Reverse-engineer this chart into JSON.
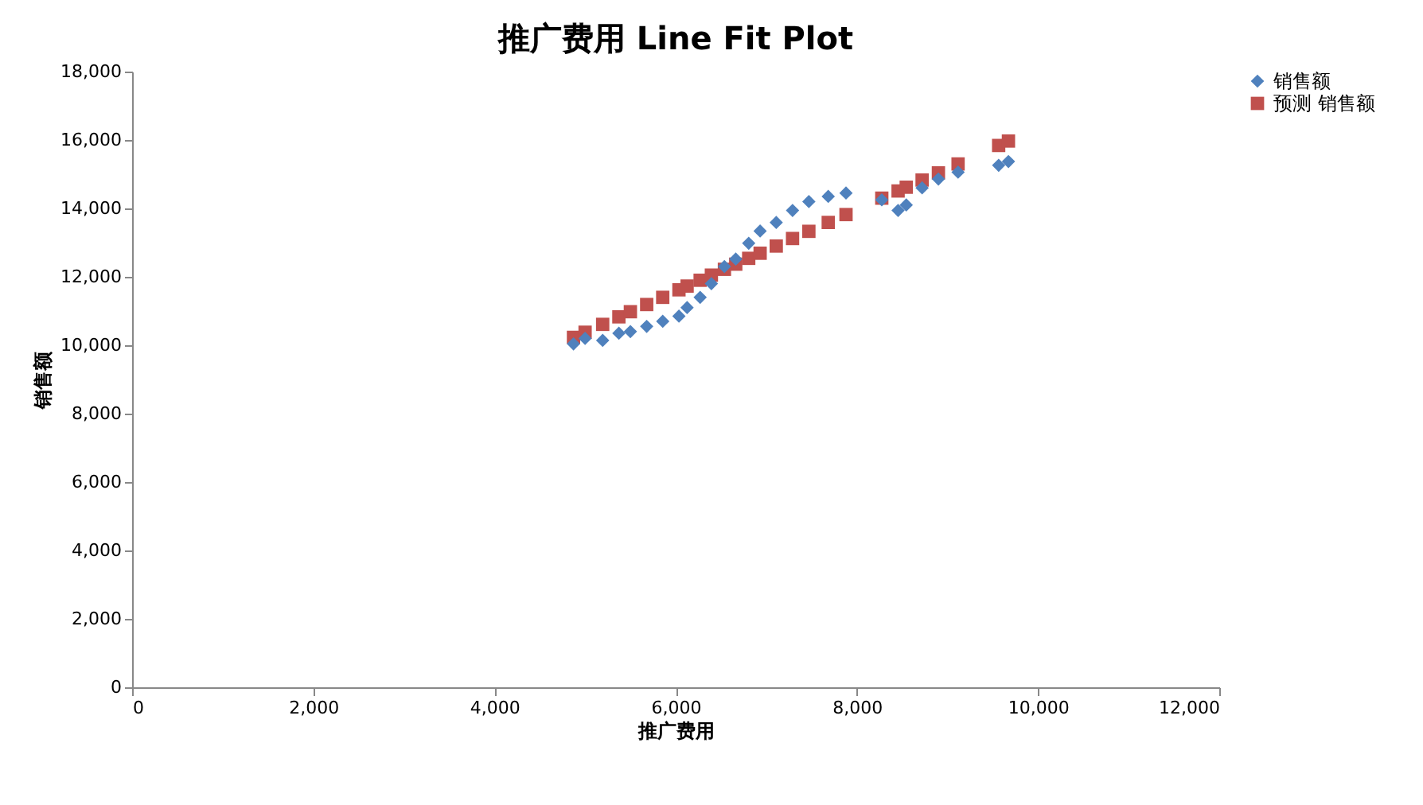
{
  "chart_data": {
    "type": "scatter",
    "title": "推广费用 Line Fit  Plot",
    "xlabel": "推广费用",
    "ylabel": "销售额",
    "x": [
      4872,
      5000,
      5194,
      5373,
      5500,
      5680,
      5857,
      6036,
      6126,
      6270,
      6394,
      6538,
      6663,
      6806,
      6932,
      7110,
      7290,
      7470,
      7684,
      7880,
      8275,
      8455,
      8545,
      8720,
      8900,
      9117,
      9565,
      9673
    ],
    "series": [
      {
        "name": "销售额",
        "color": "#4f81bd",
        "marker": "diamond",
        "values": [
          10040,
          10200,
          10140,
          10350,
          10400,
          10550,
          10700,
          10850,
          11100,
          11400,
          11800,
          12300,
          12520,
          12980,
          13340,
          13590,
          13940,
          14200,
          14350,
          14450,
          14250,
          13940,
          14100,
          14600,
          14860,
          15060,
          15260,
          15370
        ]
      },
      {
        "name": "预测 销售额",
        "color": "#c0504d",
        "marker": "square",
        "values": [
          10230,
          10380,
          10610,
          10830,
          10980,
          11190,
          11400,
          11620,
          11730,
          11900,
          12050,
          12220,
          12370,
          12540,
          12690,
          12900,
          13120,
          13330,
          13590,
          13820,
          14300,
          14510,
          14620,
          14830,
          15040,
          15300,
          15840,
          15970
        ]
      }
    ],
    "xlim": [
      0,
      12000
    ],
    "xticks": [
      0,
      {
        "value": 2000,
        "label": "2,000"
      },
      {
        "value": 4000,
        "label": "4,000"
      },
      {
        "value": 6000,
        "label": "6,000"
      },
      {
        "value": 8000,
        "label": "8,000"
      },
      {
        "value": 10000,
        "label": "10,000"
      },
      {
        "value": 12000,
        "label": "12,000"
      }
    ],
    "ylim": [
      0,
      18000
    ],
    "yticks": [
      0,
      {
        "value": 2000,
        "label": "2,000"
      },
      {
        "value": 4000,
        "label": "4,000"
      },
      {
        "value": 6000,
        "label": "6,000"
      },
      {
        "value": 8000,
        "label": "8,000"
      },
      {
        "value": 10000,
        "label": "10,000"
      },
      {
        "value": 12000,
        "label": "12,000"
      },
      {
        "value": 14000,
        "label": "14,000"
      },
      {
        "value": 16000,
        "label": "16,000"
      },
      {
        "value": 18000,
        "label": "18,000"
      }
    ],
    "grid": false,
    "legend": "right"
  }
}
